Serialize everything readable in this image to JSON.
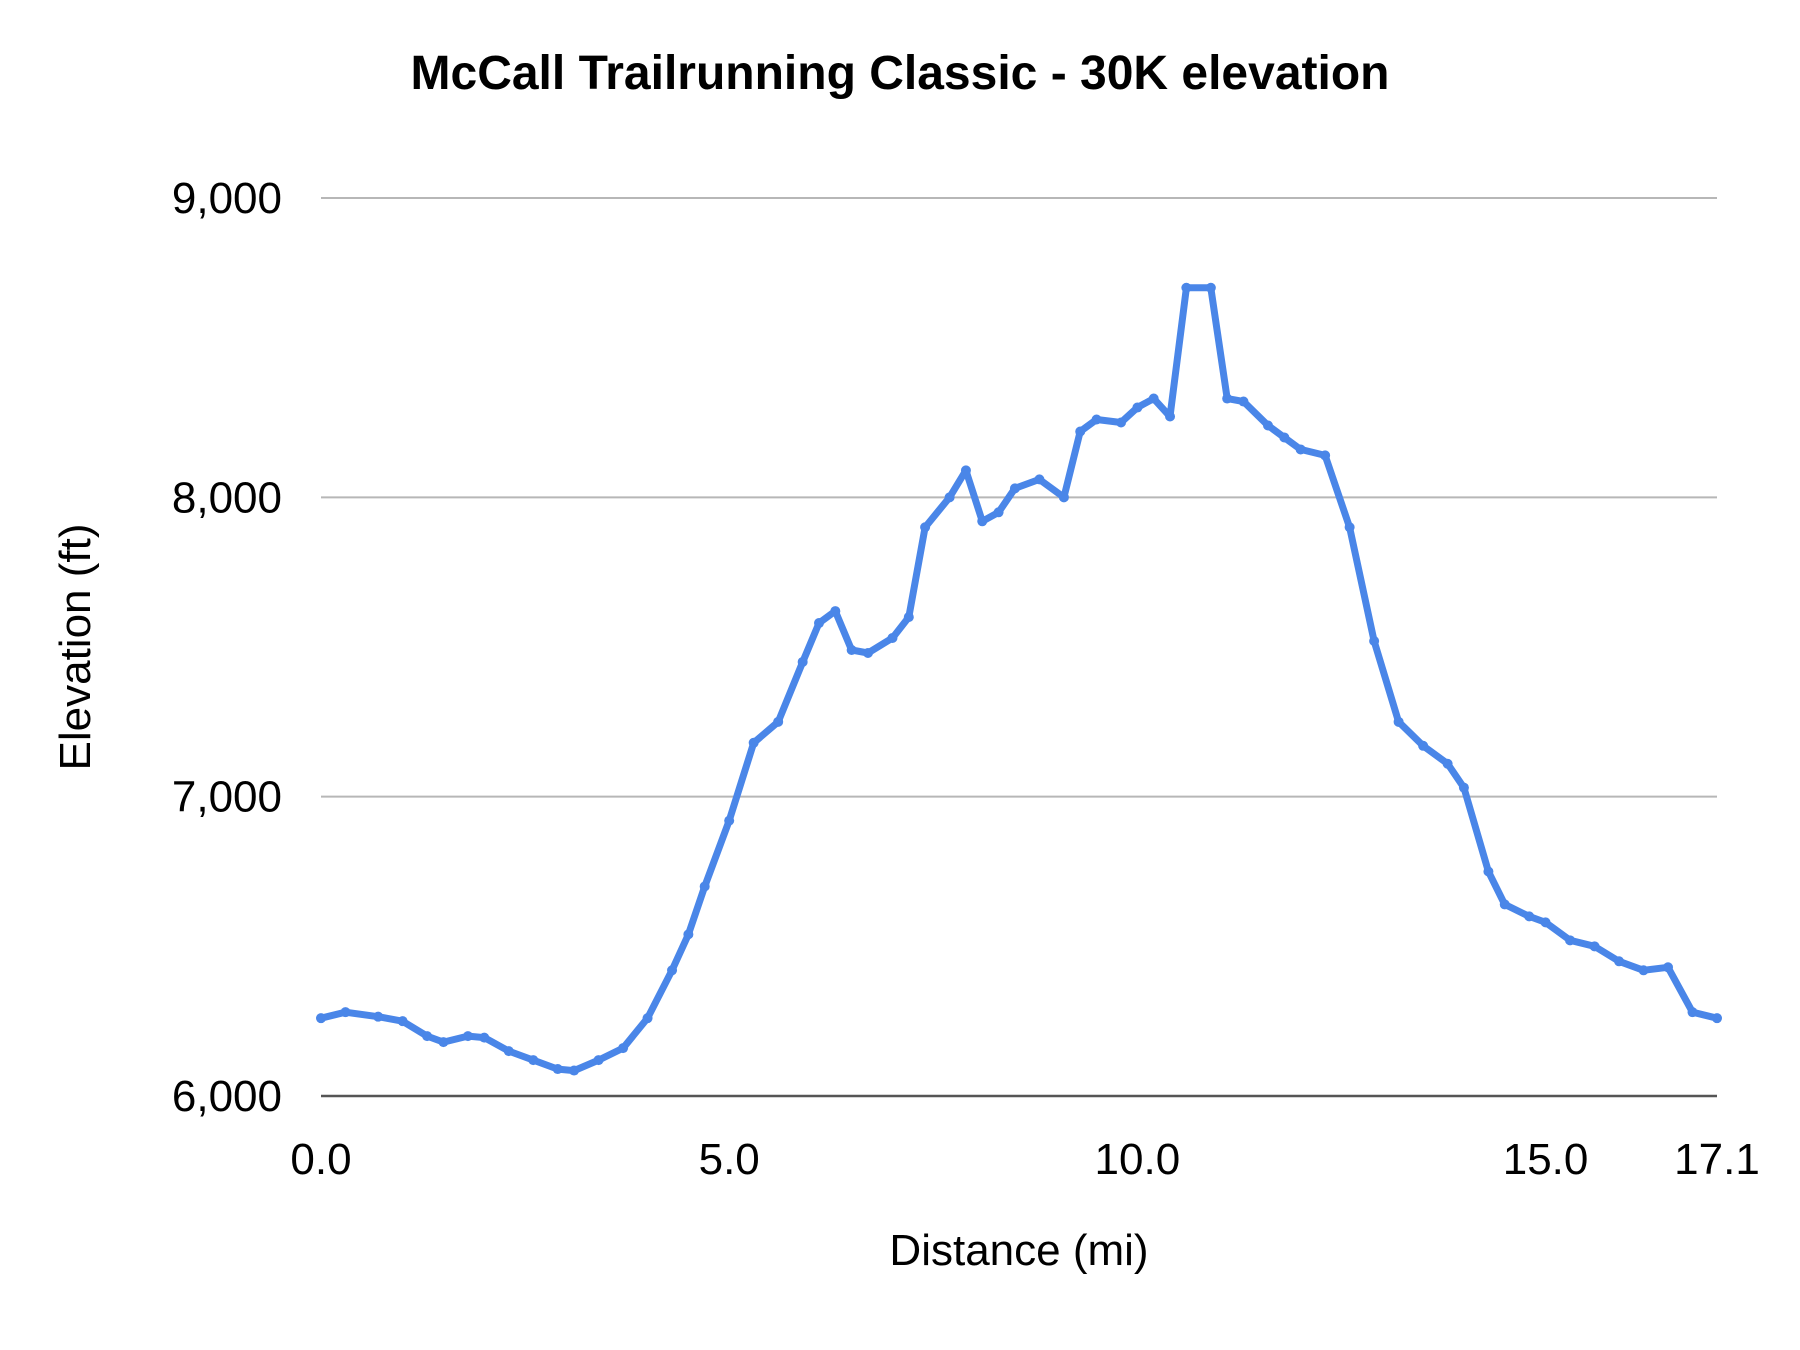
{
  "chart_data": {
    "type": "line",
    "title": "McCall Trailrunning  Classic - 30K elevation",
    "xlabel": "Distance (mi)",
    "ylabel": "Elevation (ft)",
    "xlim": [
      0,
      17.1
    ],
    "ylim": [
      6000,
      9000
    ],
    "x_ticks": [
      0,
      5,
      10,
      15,
      17.1
    ],
    "x_tick_labels": [
      "0.0",
      "5.0",
      "10.0",
      "15.0",
      "17.1"
    ],
    "y_ticks": [
      6000,
      7000,
      8000,
      9000
    ],
    "y_tick_labels": [
      "6,000",
      "7,000",
      "8,000",
      "9,000"
    ],
    "grid": "horizontal",
    "legend": "none",
    "line_color": "#4a86e8",
    "series": [
      {
        "x": [
          0.0,
          0.3,
          0.7,
          1.0,
          1.3,
          1.5,
          1.8,
          2.0,
          2.3,
          2.6,
          2.9,
          3.1,
          3.4,
          3.7,
          4.0,
          4.3,
          4.5,
          4.7,
          5.0,
          5.3,
          5.6,
          5.9,
          6.1,
          6.3,
          6.5,
          6.7,
          7.0,
          7.2,
          7.4,
          7.7,
          7.9,
          8.1,
          8.3,
          8.5,
          8.8,
          9.1,
          9.3,
          9.5,
          9.8,
          10.0,
          10.2,
          10.4,
          10.6,
          10.9,
          11.1,
          11.3,
          11.6,
          11.8,
          12.0,
          12.3,
          12.6,
          12.9,
          13.2,
          13.5,
          13.8,
          14.0,
          14.3,
          14.5,
          14.8,
          15.0,
          15.3,
          15.6,
          15.9,
          16.2,
          16.5,
          16.8,
          17.1
        ],
        "y": [
          6260,
          6280,
          6265,
          6250,
          6200,
          6180,
          6200,
          6195,
          6150,
          6120,
          6090,
          6085,
          6120,
          6160,
          6260,
          6420,
          6540,
          6700,
          6920,
          7180,
          7250,
          7450,
          7580,
          7620,
          7490,
          7480,
          7530,
          7600,
          7900,
          8000,
          8090,
          7920,
          7950,
          8030,
          8060,
          8000,
          8220,
          8260,
          8250,
          8300,
          8330,
          8270,
          8700,
          8700,
          8330,
          8320,
          8240,
          8200,
          8160,
          8140,
          7900,
          7520,
          7250,
          7170,
          7110,
          7030,
          6750,
          6640,
          6600,
          6580,
          6520,
          6500,
          6450,
          6420,
          6430,
          6280,
          6260
        ]
      }
    ]
  }
}
